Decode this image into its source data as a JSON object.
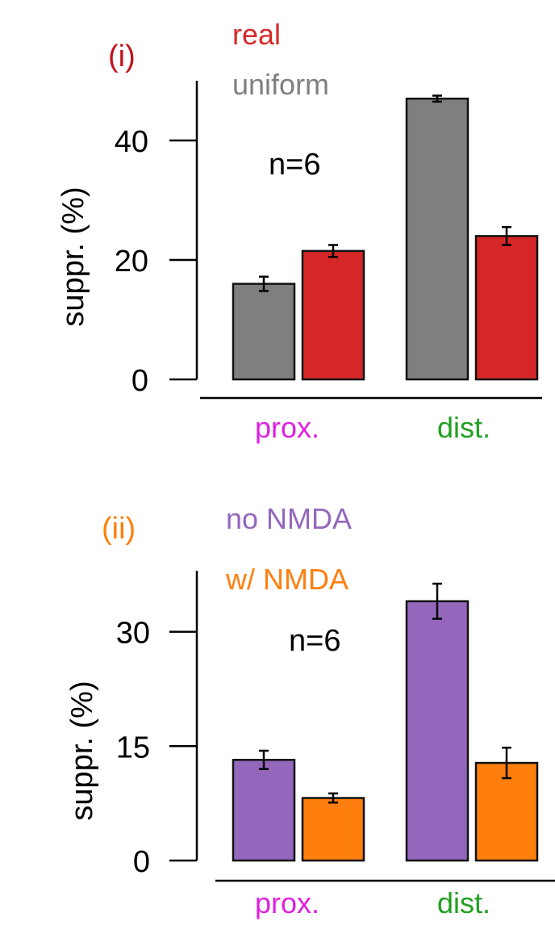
{
  "colors": {
    "uniform": "#7f7f7f",
    "real": "#d62728",
    "no_nmda": "#9467bd",
    "w_nmda": "#ff7f0e",
    "prox_label": "#e020e0",
    "dist_label": "#22a022",
    "panel_i_label": "#c0141e",
    "panel_ii_label": "#ff7f0e"
  },
  "chart_data": [
    {
      "type": "bar",
      "panel_label": "(i)",
      "ylabel": "suppr. (%)",
      "annotation": "n=6",
      "ylim": [
        0,
        50
      ],
      "yticks": [
        0,
        20,
        40
      ],
      "categories": [
        "prox.",
        "dist."
      ],
      "series": [
        {
          "name": "uniform",
          "color": "#7f7f7f",
          "values": [
            16,
            47
          ],
          "errors": [
            1.2,
            0.5
          ]
        },
        {
          "name": "real",
          "color": "#d62728",
          "values": [
            21.5,
            24
          ],
          "errors": [
            1.0,
            1.5
          ]
        }
      ],
      "legend": "top-left"
    },
    {
      "type": "bar",
      "panel_label": "(ii)",
      "ylabel": "suppr. (%)",
      "annotation": "n=6",
      "ylim": [
        0,
        38
      ],
      "yticks": [
        0,
        15,
        30
      ],
      "categories": [
        "prox.",
        "dist."
      ],
      "series": [
        {
          "name": "no NMDA",
          "color": "#9467bd",
          "values": [
            13.2,
            34
          ],
          "errors": [
            1.2,
            2.3
          ]
        },
        {
          "name": "w/ NMDA",
          "color": "#ff7f0e",
          "values": [
            8.2,
            12.8
          ],
          "errors": [
            0.6,
            2.0
          ]
        }
      ],
      "legend": "top-left"
    }
  ]
}
